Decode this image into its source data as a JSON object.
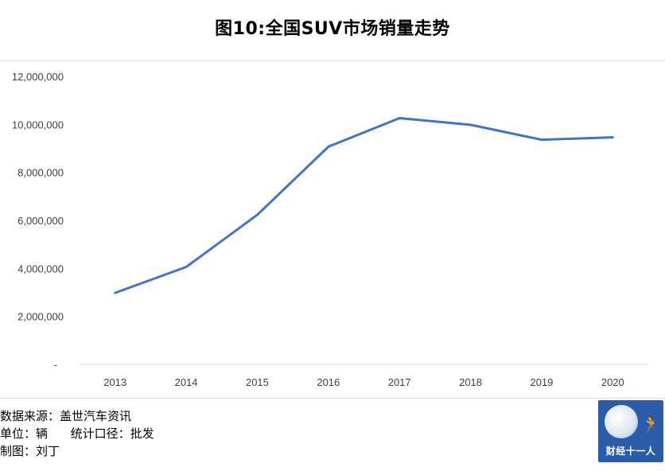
{
  "title": "图10:全国SUV市场销量走势",
  "notes": {
    "source": "数据来源：盖世汽车资讯",
    "unit": "单位：辆      统计口径：批发",
    "author": "制图：刘丁"
  },
  "logo": {
    "text": "财经十一人",
    "figure_icon": "runner-icon"
  },
  "colors": {
    "line": "#4472c4",
    "grid": "#d9d9d9"
  },
  "chart_data": {
    "type": "line",
    "title": "图10:全国SUV市场销量走势",
    "categories": [
      "2013",
      "2014",
      "2015",
      "2016",
      "2017",
      "2018",
      "2019",
      "2020"
    ],
    "series": [
      {
        "values": [
          2980000,
          4060000,
          6230000,
          9070000,
          10260000,
          9980000,
          9360000,
          9460000
        ]
      }
    ],
    "yticks": [
      "-",
      "2,000,000",
      "4,000,000",
      "6,000,000",
      "8,000,000",
      "10,000,000",
      "12,000,000"
    ],
    "ylim": [
      0,
      12000000
    ],
    "xlabel": "",
    "ylabel": "",
    "grid": false,
    "legend": "none"
  }
}
